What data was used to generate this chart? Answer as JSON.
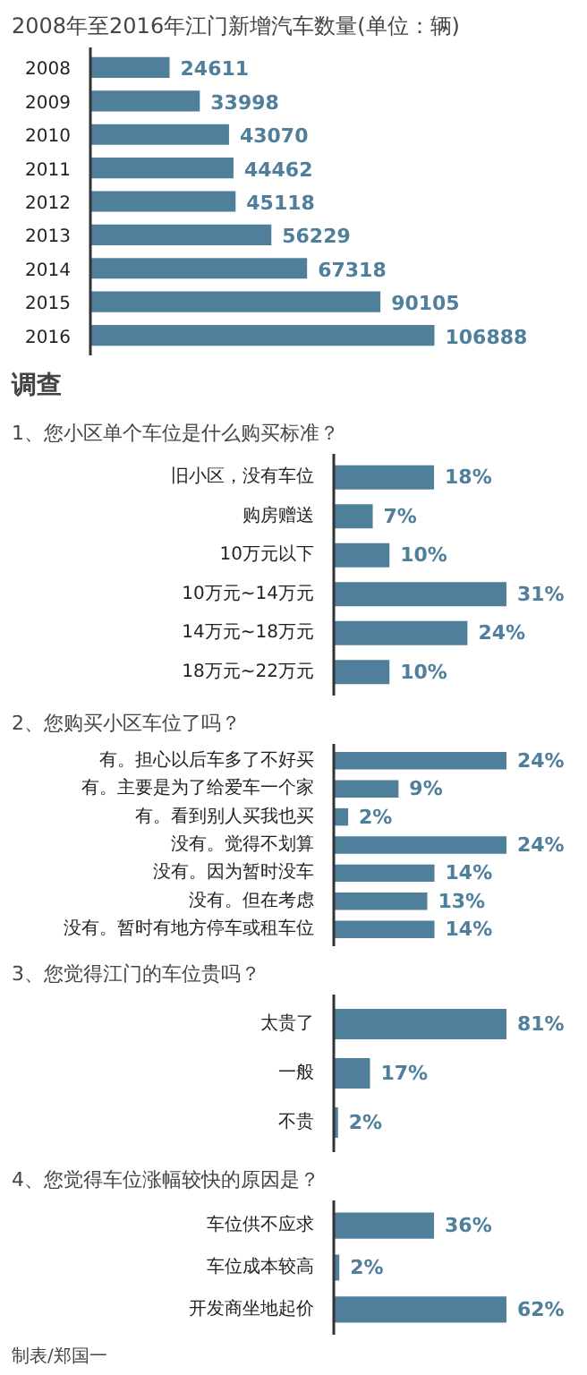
{
  "chart_data": [
    {
      "type": "bar",
      "orientation": "horizontal",
      "title": "2008年至2016年江门新增汽车数量(单位：辆)",
      "categories": [
        "2008",
        "2009",
        "2010",
        "2011",
        "2012",
        "2013",
        "2014",
        "2015",
        "2016"
      ],
      "values": [
        24611,
        33998,
        43070,
        44462,
        45118,
        56229,
        67318,
        90105,
        106888
      ],
      "color": "#4f7f9b",
      "data_labels": true
    },
    {
      "type": "bar",
      "orientation": "horizontal",
      "title": "调查",
      "subtitle": "1、您小区单个车位是什么购买标准？",
      "categories": [
        "旧小区，没有车位",
        "购房赠送",
        "10万元以下",
        "10万元~14万元",
        "14万元~18万元",
        "18万元~22万元"
      ],
      "values": [
        18,
        7,
        10,
        31,
        24,
        10
      ],
      "value_labels": [
        "18%",
        "7%",
        "10%",
        "31%",
        "24%",
        "10%"
      ],
      "color": "#4f7f9b"
    },
    {
      "type": "bar",
      "orientation": "horizontal",
      "title": "2、您购买小区车位了吗？",
      "categories": [
        "有。担心以后车多了不好买",
        "有。主要是为了给爱车一个家",
        "有。看到别人买我也买",
        "没有。觉得不划算",
        "没有。因为暂时没车",
        "没有。但在考虑",
        "没有。暂时有地方停车或租车位"
      ],
      "values": [
        24,
        9,
        2,
        24,
        14,
        13,
        14
      ],
      "value_labels": [
        "24%",
        "9%",
        "2%",
        "24%",
        "14%",
        "13%",
        "14%"
      ],
      "color": "#4f7f9b"
    },
    {
      "type": "bar",
      "orientation": "horizontal",
      "title": "3、您觉得江门的车位贵吗？",
      "categories": [
        "太贵了",
        "一般",
        "不贵"
      ],
      "values": [
        81,
        17,
        2
      ],
      "value_labels": [
        "81%",
        "17%",
        "2%"
      ],
      "color": "#4f7f9b"
    },
    {
      "type": "bar",
      "orientation": "horizontal",
      "title": "4、您觉得车位涨幅较快的原因是？",
      "categories": [
        "车位供不应求",
        "车位成本较高",
        "开发商坐地起价"
      ],
      "values": [
        36,
        2,
        62
      ],
      "value_labels": [
        "36%",
        "2%",
        "62%"
      ],
      "color": "#4f7f9b",
      "annotations": [
        "制表/郑国一"
      ]
    }
  ]
}
